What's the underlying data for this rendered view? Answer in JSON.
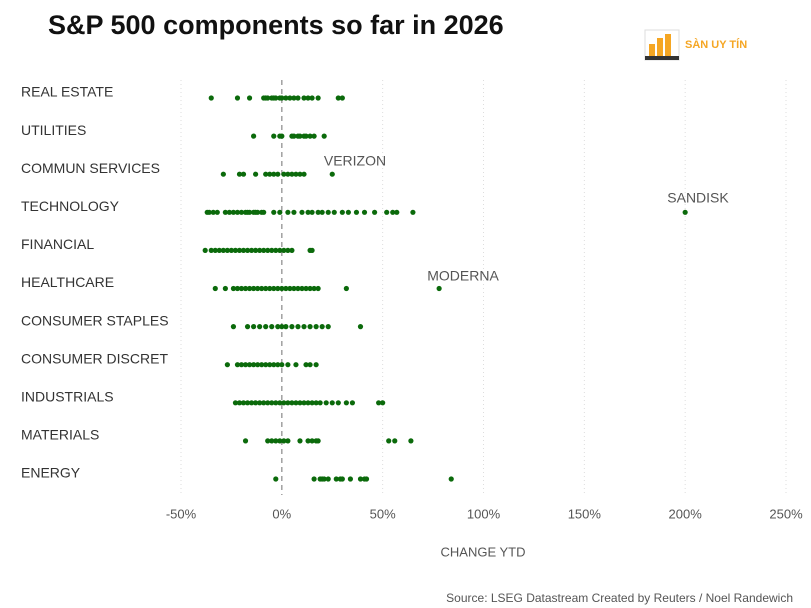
{
  "chart_data": {
    "type": "strip",
    "title": "S&P 500 components so far in 2026",
    "brand": "SÀN UY TÍN",
    "x_label": "CHANGE YTD",
    "source": "Source: LSEG Datastream  Created by Reuters / Noel Randewich",
    "color": "#0b6a0b",
    "xlim": [
      -50,
      250
    ],
    "xticks": [
      {
        "value": -50,
        "label": "-50%"
      },
      {
        "value": 0,
        "label": "0%"
      },
      {
        "value": 50,
        "label": "50%"
      },
      {
        "value": 100,
        "label": "100%"
      },
      {
        "value": 150,
        "label": "150%"
      },
      {
        "value": 200,
        "label": "200%"
      },
      {
        "value": 250,
        "label": "250%"
      }
    ],
    "categories": [
      "REAL ESTATE",
      "UTILITIES",
      "COMMUN SERVICES",
      "TECHNOLOGY",
      "FINANCIAL",
      "HEALTHCARE",
      "CONSUMER STAPLES",
      "CONSUMER DISCRET",
      "INDUSTRIALS",
      "MATERIALS",
      "ENERGY"
    ],
    "values": [
      [
        -35,
        -22,
        -16,
        -9,
        -8,
        -7,
        -5,
        -4,
        -3,
        -1,
        0,
        2,
        4,
        6,
        8,
        11,
        13,
        15,
        18,
        28,
        30
      ],
      [
        -14,
        -4,
        -1,
        0,
        5,
        6,
        8,
        9,
        11,
        12,
        14,
        16,
        21
      ],
      [
        -29,
        -21,
        -19,
        -13,
        -8,
        -6,
        -4,
        -2,
        1,
        3,
        5,
        7,
        9,
        11,
        25
      ],
      [
        -37,
        -36,
        -34,
        -32,
        -28,
        -26,
        -24,
        -22,
        -20,
        -18,
        -17,
        -16,
        -14,
        -13,
        -12,
        -10,
        -9,
        -4,
        -1,
        3,
        6,
        10,
        13,
        15,
        18,
        20,
        23,
        26,
        30,
        33,
        37,
        41,
        46,
        52,
        55,
        57,
        65,
        200
      ],
      [
        -38,
        -35,
        -33,
        -31,
        -29,
        -27,
        -25,
        -23,
        -21,
        -19,
        -17,
        -15,
        -13,
        -11,
        -9,
        -7,
        -5,
        -3,
        -1,
        1,
        3,
        5,
        14,
        15
      ],
      [
        -33,
        -28,
        -24,
        -22,
        -20,
        -18,
        -16,
        -14,
        -12,
        -10,
        -8,
        -6,
        -4,
        -2,
        0,
        2,
        4,
        6,
        8,
        10,
        12,
        14,
        16,
        18,
        32,
        78
      ],
      [
        -24,
        -17,
        -14,
        -11,
        -8,
        -5,
        -2,
        0,
        2,
        5,
        8,
        11,
        14,
        17,
        20,
        23,
        39
      ],
      [
        -27,
        -22,
        -20,
        -18,
        -16,
        -14,
        -12,
        -10,
        -8,
        -6,
        -4,
        -2,
        0,
        3,
        7,
        12,
        14,
        17
      ],
      [
        -23,
        -21,
        -19,
        -17,
        -15,
        -13,
        -11,
        -9,
        -7,
        -5,
        -3,
        -1,
        1,
        3,
        5,
        7,
        9,
        11,
        13,
        15,
        17,
        19,
        22,
        25,
        28,
        32,
        35,
        48,
        50
      ],
      [
        -18,
        -7,
        -5,
        -3,
        -1,
        1,
        3,
        9,
        13,
        15,
        17,
        18,
        53,
        56,
        64
      ],
      [
        -3,
        16,
        19,
        20,
        21,
        23,
        27,
        29,
        30,
        34,
        39,
        41,
        42,
        84
      ]
    ],
    "annotations": [
      "VERIZON",
      "SANDISK",
      "MODERNA"
    ]
  }
}
